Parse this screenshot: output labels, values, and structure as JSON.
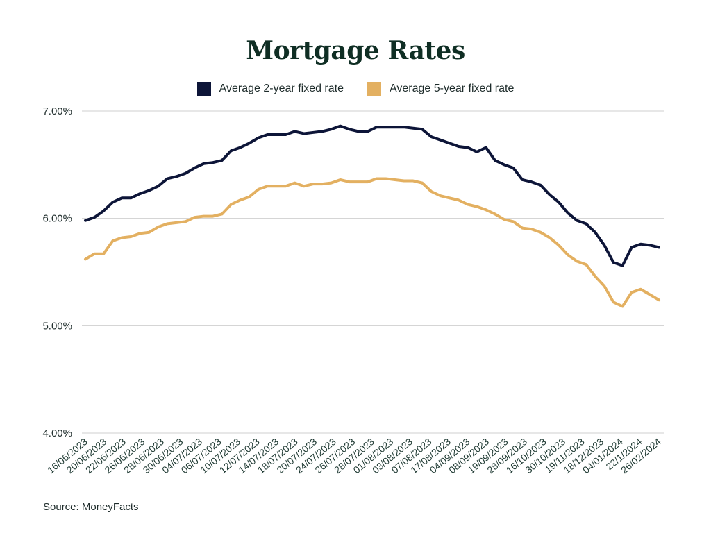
{
  "chart_data": {
    "type": "line",
    "title": "Mortgage Rates",
    "xlabel": "",
    "ylabel": "",
    "ylim": [
      4.0,
      7.0
    ],
    "y_ticks": [
      "4.00%",
      "5.00%",
      "6.00%",
      "7.00%"
    ],
    "y_tick_values": [
      4,
      5,
      6,
      7
    ],
    "grid": "horizontal",
    "legend": "top-center",
    "x_tick_labels": [
      "16/06/2023",
      "20/06/2023",
      "22/06/2023",
      "26/06/2023",
      "28/06/2023",
      "30/06/2023",
      "04/07/2023",
      "06/07/2023",
      "10/07/2023",
      "12/07/2023",
      "14/07/2023",
      "18/07/2023",
      "20/07/2023",
      "24/07/2023",
      "26/07/2023",
      "28/07/2023",
      "01/08/2023",
      "03/08/2023",
      "07/08/2023",
      "17/08/2023",
      "04/09/2023",
      "08/09/2023",
      "19/09/2023",
      "28/09/2023",
      "16/10/2023",
      "30/10/2023",
      "19/11/2023",
      "18/12/2023",
      "04/01/2024",
      "22/1/2024",
      "26/02/2024"
    ],
    "series": [
      {
        "name": "Average 2-year fixed rate",
        "color": "#0d1538",
        "values": [
          5.98,
          6.01,
          6.07,
          6.15,
          6.19,
          6.19,
          6.23,
          6.26,
          6.3,
          6.37,
          6.39,
          6.42,
          6.47,
          6.51,
          6.52,
          6.54,
          6.63,
          6.66,
          6.7,
          6.75,
          6.78,
          6.78,
          6.78,
          6.81,
          6.79,
          6.8,
          6.81,
          6.83,
          6.86,
          6.83,
          6.81,
          6.81,
          6.85,
          6.85,
          6.85,
          6.85,
          6.84,
          6.83,
          6.76,
          6.73,
          6.7,
          6.67,
          6.66,
          6.62,
          6.66,
          6.54,
          6.5,
          6.47,
          6.36,
          6.34,
          6.31,
          6.22,
          6.15,
          6.05,
          5.98,
          5.95,
          5.87,
          5.75,
          5.59,
          5.56,
          5.73,
          5.76,
          5.75,
          5.73
        ]
      },
      {
        "name": "Average 5-year fixed rate",
        "color": "#e3b061",
        "values": [
          5.62,
          5.67,
          5.67,
          5.79,
          5.82,
          5.83,
          5.86,
          5.87,
          5.92,
          5.95,
          5.96,
          5.97,
          6.01,
          6.02,
          6.02,
          6.04,
          6.13,
          6.17,
          6.2,
          6.27,
          6.3,
          6.3,
          6.3,
          6.33,
          6.3,
          6.32,
          6.32,
          6.33,
          6.36,
          6.34,
          6.34,
          6.34,
          6.37,
          6.37,
          6.36,
          6.35,
          6.35,
          6.33,
          6.25,
          6.21,
          6.19,
          6.17,
          6.13,
          6.11,
          6.08,
          6.04,
          5.99,
          5.97,
          5.91,
          5.9,
          5.87,
          5.82,
          5.75,
          5.66,
          5.6,
          5.57,
          5.46,
          5.37,
          5.22,
          5.18,
          5.31,
          5.34,
          5.29,
          5.24
        ]
      }
    ]
  },
  "source": "Source: MoneyFacts"
}
